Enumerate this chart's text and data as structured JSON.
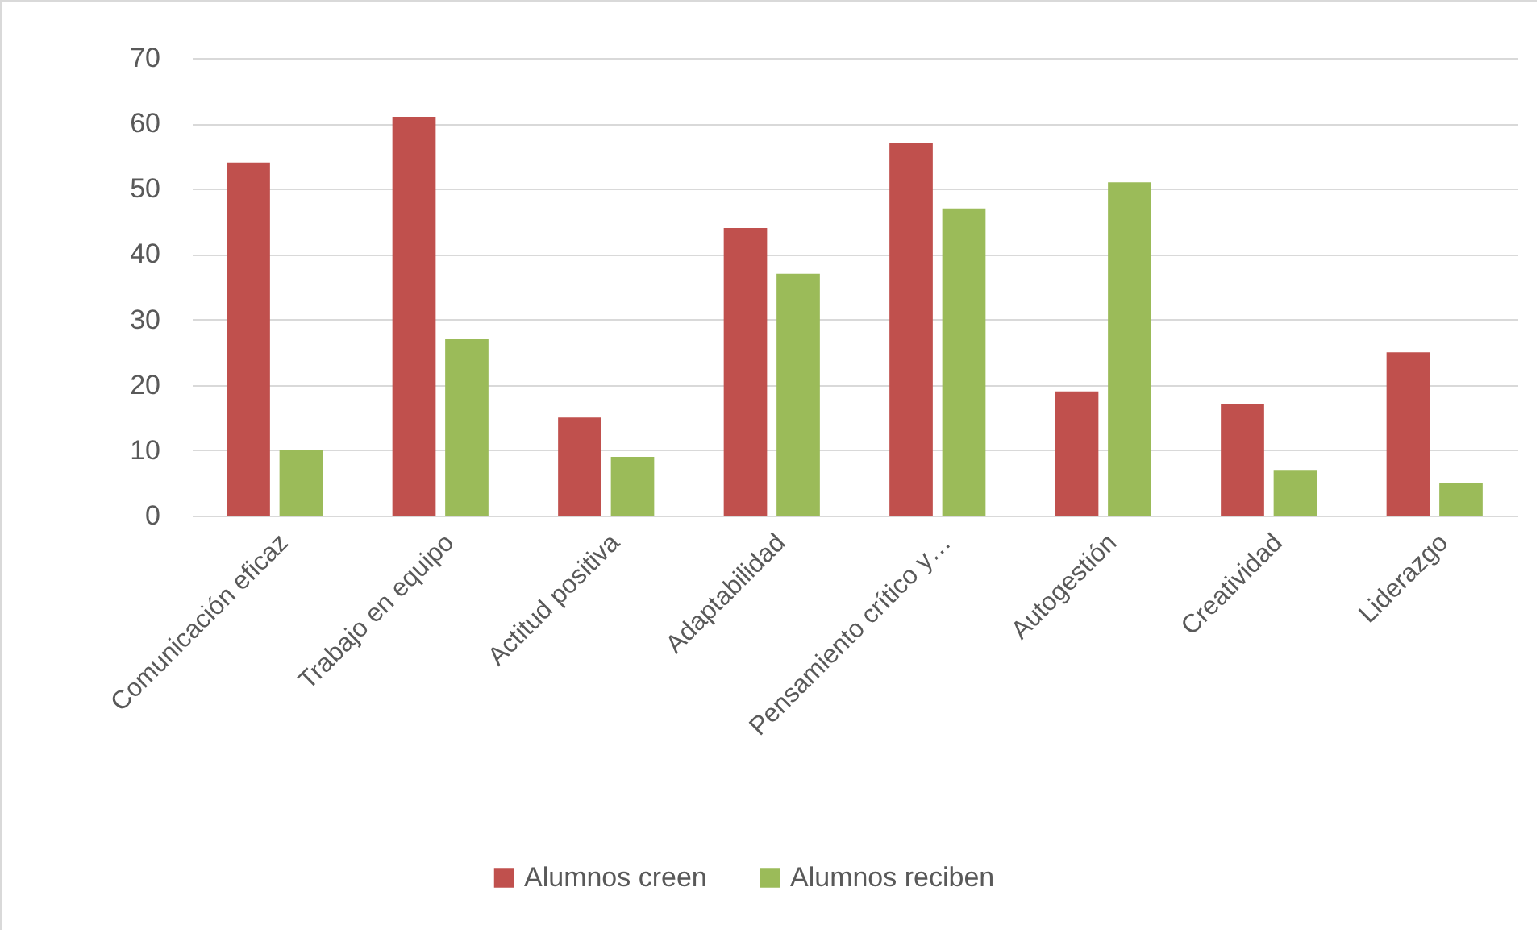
{
  "chart_data": {
    "type": "bar",
    "categories": [
      "Comunicación eficaz",
      "Trabajo en equipo",
      "Actitud positiva",
      "Adaptabilidad",
      "Pensamiento crítico y…",
      "Autogestión",
      "Creatividad",
      "Liderazgo"
    ],
    "series": [
      {
        "name": "Alumnos creen",
        "color": "#c0504d",
        "values": [
          54,
          61,
          15,
          44,
          57,
          19,
          17,
          25
        ]
      },
      {
        "name": "Alumnos reciben",
        "color": "#9bbb59",
        "values": [
          10,
          27,
          9,
          37,
          47,
          51,
          7,
          5
        ]
      }
    ],
    "ylim": [
      0,
      70
    ],
    "yticks": [
      0,
      10,
      20,
      30,
      40,
      50,
      60,
      70
    ],
    "grid": "y",
    "legend": "bottom"
  }
}
